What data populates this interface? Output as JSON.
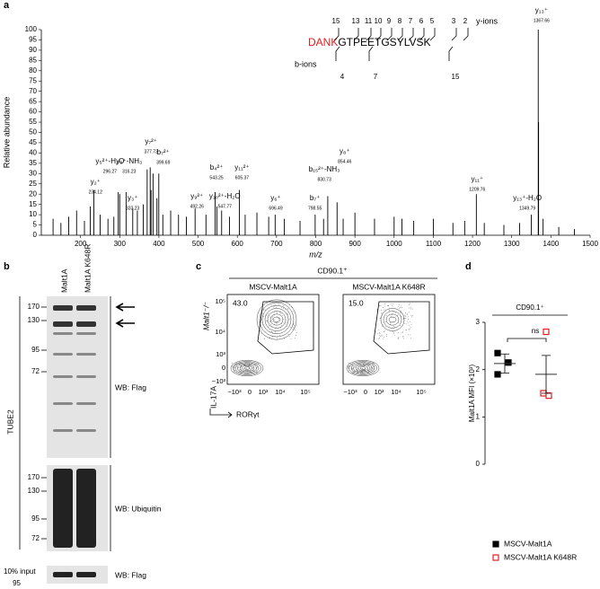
{
  "panels": [
    "a",
    "b",
    "c",
    "d"
  ],
  "chart_data": [
    {
      "type": "stem",
      "y_label": "Relative abundance",
      "x_label": "m/z",
      "xlim": [
        100,
        1500
      ],
      "ylim": [
        0,
        100
      ],
      "xticks": [
        200,
        300,
        400,
        500,
        600,
        700,
        800,
        900,
        1000,
        1100,
        1200,
        1300,
        1400,
        1500
      ],
      "yticks": [
        0,
        5,
        10,
        15,
        20,
        25,
        30,
        35,
        40,
        45,
        50,
        55,
        60,
        65,
        70,
        75,
        80,
        85,
        90,
        95,
        100
      ],
      "color": "#000000",
      "x": [
        130,
        150,
        170,
        190,
        210,
        225,
        250,
        270,
        285,
        300,
        345,
        360,
        370,
        380,
        385,
        395,
        410,
        430,
        450,
        470,
        520,
        560,
        580,
        620,
        650,
        680,
        720,
        760,
        820,
        870,
        900,
        950,
        1000,
        1020,
        1050,
        1100,
        1150,
        1180,
        1230,
        1280,
        1320,
        1368.5,
        1380,
        1420,
        1460
      ],
      "values": [
        8,
        6,
        9,
        12,
        7,
        14,
        10,
        8,
        9,
        20,
        12,
        15,
        32,
        22,
        30,
        18,
        10,
        12,
        10,
        9,
        10,
        12,
        9,
        10,
        11,
        9,
        8,
        7,
        8,
        8,
        11,
        8,
        9,
        8,
        7,
        8,
        6,
        7,
        6,
        5,
        6,
        55,
        8,
        4,
        3
      ],
      "annotations": [
        {
          "ion": "y₂⁺",
          "mz": 234.12,
          "abundance": 22
        },
        {
          "ion": "y₅²⁺-H₂O",
          "mz": 296.27,
          "abundance": 21
        },
        {
          "ion": "y₃⁺-NH₃",
          "mz": 316.23,
          "abundance": 21
        },
        {
          "ion": "y₃⁺",
          "mz": 333.23,
          "abundance": 13
        },
        {
          "ion": "y₇²⁺",
          "mz": 377.73,
          "abundance": 33
        },
        {
          "ion": "b₇²⁺",
          "mz": 399.69,
          "abundance": 30
        },
        {
          "ion": "y₉²⁺",
          "mz": 492.26,
          "abundance": 13
        },
        {
          "ion": "b₄²⁺",
          "mz": 543.25,
          "abundance": 21
        },
        {
          "ion": "y₁₀²⁺-H₂O",
          "mz": 547.77,
          "abundance": 14
        },
        {
          "ion": "y₁₁²⁺",
          "mz": 605.37,
          "abundance": 22
        },
        {
          "ion": "y₆⁺",
          "mz": 696.49,
          "abundance": 10
        },
        {
          "ion": "b₇⁺",
          "mz": 798.55,
          "abundance": 10
        },
        {
          "ion": "b₁₅²⁺-NH₃",
          "mz": 830.73,
          "abundance": 19
        },
        {
          "ion": "y₈⁺",
          "mz": 854.46,
          "abundance": 16
        },
        {
          "ion": "y₁₁⁺",
          "mz": 1209.76,
          "abundance": 20
        },
        {
          "ion": "y₁₃⁺-H₂O",
          "mz": 1349.79,
          "abundance": 10
        },
        {
          "ion": "y₁₃⁺",
          "mz": 1367.66,
          "abundance": 100
        }
      ],
      "sequence": {
        "modified": "DANK",
        "rest": "GTPEETGSYLVSK",
        "modified_color": "#e02020",
        "y_ions_label": "y-ions",
        "b_ions_label": "b-ions",
        "y_ions": [
          "15",
          "13",
          "11",
          "10",
          "9",
          "8",
          "7",
          "6",
          "5",
          "3",
          "2"
        ],
        "b_ions": [
          "4",
          "7",
          "15"
        ]
      }
    },
    {
      "type": "dot",
      "title": "CD90.1⁺",
      "y_label": "Malt1A MFI (×10³)",
      "annotation": "ns",
      "ylim": [
        0,
        3
      ],
      "yticks": [
        0,
        1,
        2,
        3
      ],
      "series": [
        {
          "name": "MSCV-Malt1A",
          "color": "#000000",
          "marker": "filled-square",
          "values": [
            2.35,
            2.15,
            1.9
          ],
          "mean": 2.13,
          "error": 0.2
        },
        {
          "name": "MSCV-Malt1A K648R",
          "color": "#e02020",
          "marker": "open-square",
          "values": [
            2.8,
            1.5,
            1.45
          ],
          "mean": 1.9,
          "error": 0.4
        }
      ]
    }
  ],
  "blot": {
    "lanes": [
      "Malt1A",
      "Malt1A K648R"
    ],
    "side_label": "TUBE2",
    "panels": [
      {
        "label": "WB: Flag",
        "markers": [
          "170",
          "130",
          "95",
          "72"
        ]
      },
      {
        "label": "WB: Ubiquitin",
        "markers": [
          "170",
          "130",
          "95",
          "72"
        ]
      }
    ],
    "input": {
      "label": "10% input",
      "blot": "WB: Flag",
      "markers": [
        "95"
      ]
    }
  },
  "flow": {
    "title": "CD90.1⁺",
    "genotype": "Malt1⁻/⁻",
    "plots": [
      {
        "title": "MSCV-Malt1A",
        "gate": "43.0"
      },
      {
        "title": "MSCV-Malt1A K648R",
        "gate": "15.0"
      }
    ],
    "y_label": "IL-17A",
    "x_label": "RORγt",
    "yticks": [
      "10⁵",
      "10⁴",
      "10³",
      "0",
      "−10³"
    ],
    "xticks": [
      "−10³",
      "0",
      "10³",
      "10⁴",
      "10⁵"
    ]
  }
}
